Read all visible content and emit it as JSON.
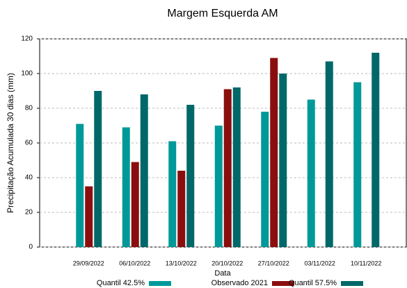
{
  "chart_data": {
    "type": "bar",
    "title": "Margem Esquerda AM",
    "x_label": "Data",
    "y_label": "Precipitação Acumulada 30 dias (mm)",
    "categories": [
      "29/09/2022",
      "06/10/2022",
      "13/10/2022",
      "20/10/2022",
      "27/10/2022",
      "03/11/2022",
      "10/11/2022"
    ],
    "series": [
      {
        "name": "Quantil 42.5%",
        "color": "#009999",
        "values": [
          71,
          69,
          61,
          70,
          78,
          85,
          95
        ]
      },
      {
        "name": "Observado 2021",
        "color": "#8b0e0e",
        "values": [
          35,
          49,
          44,
          91,
          109,
          null,
          null
        ]
      },
      {
        "name": "Quantil 57.5%",
        "color": "#006868",
        "values": [
          90,
          88,
          82,
          92,
          100,
          107,
          112
        ]
      }
    ],
    "ylim": [
      0,
      120
    ],
    "yticks": [
      0,
      20,
      40,
      60,
      80,
      100,
      120
    ],
    "grid": true,
    "legend": "bottom"
  }
}
